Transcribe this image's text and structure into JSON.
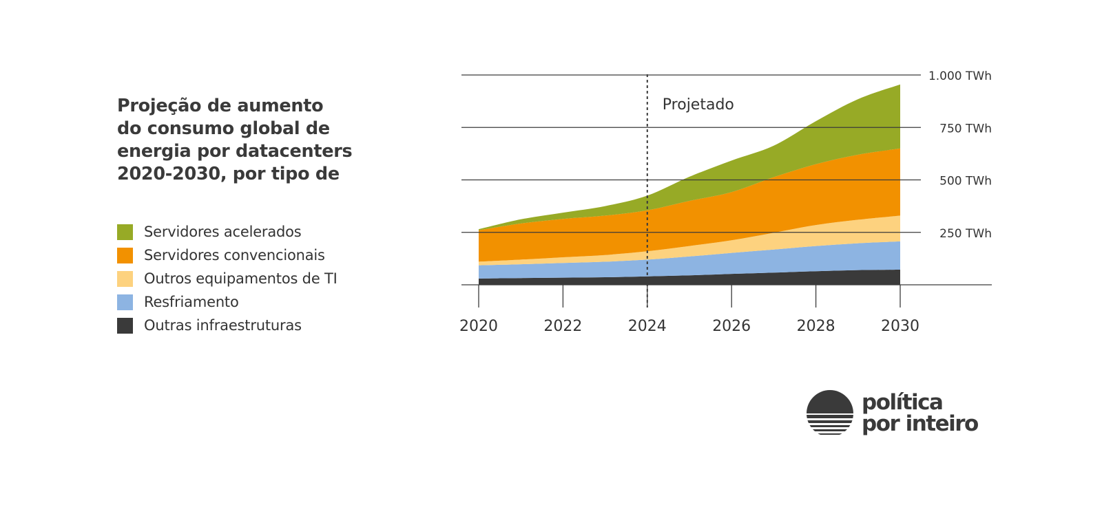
{
  "title": "Projeção de aumento\ndo consumo global de\nenergia por datacenters\n2020-2030, por tipo de",
  "brand": {
    "name": "política\npor inteiro"
  },
  "chart_data": {
    "type": "area",
    "stacked": true,
    "x": [
      2020,
      2021,
      2022,
      2023,
      2024,
      2025,
      2026,
      2027,
      2028,
      2029,
      2030
    ],
    "x_ticks": [
      "2020",
      "2022",
      "2024",
      "2026",
      "2028",
      "2030"
    ],
    "ylim": [
      0,
      1000
    ],
    "y_ticks": [
      {
        "value": 250,
        "label": "250 TWh"
      },
      {
        "value": 500,
        "label": "500 TWh"
      },
      {
        "value": 750,
        "label": "750 TWh"
      },
      {
        "value": 1000,
        "label": "1.000 TWh"
      }
    ],
    "grid": true,
    "annotation": {
      "label": "Projetado",
      "x": 2024
    },
    "legend_position": "left",
    "series": [
      {
        "name": "Outras infraestruturas",
        "color": "#3a3a3a",
        "values": [
          30,
          32,
          34,
          36,
          40,
          45,
          52,
          58,
          65,
          70,
          72
        ]
      },
      {
        "name": "Resfriamento",
        "color": "#8db4e2",
        "values": [
          63,
          66,
          70,
          74,
          80,
          90,
          100,
          110,
          120,
          128,
          135
        ]
      },
      {
        "name": "Outros equipamentos de TI",
        "color": "#fdd27f",
        "values": [
          17,
          22,
          27,
          32,
          40,
          50,
          60,
          80,
          100,
          112,
          123
        ]
      },
      {
        "name": "Servidores convencionais",
        "color": "#f29100",
        "values": [
          150,
          172,
          183,
          188,
          195,
          215,
          230,
          265,
          290,
          310,
          320
        ]
      },
      {
        "name": "Servidores acelerados",
        "color": "#97aa26",
        "values": [
          5,
          20,
          30,
          45,
          70,
          115,
          150,
          150,
          205,
          265,
          305
        ]
      }
    ]
  }
}
